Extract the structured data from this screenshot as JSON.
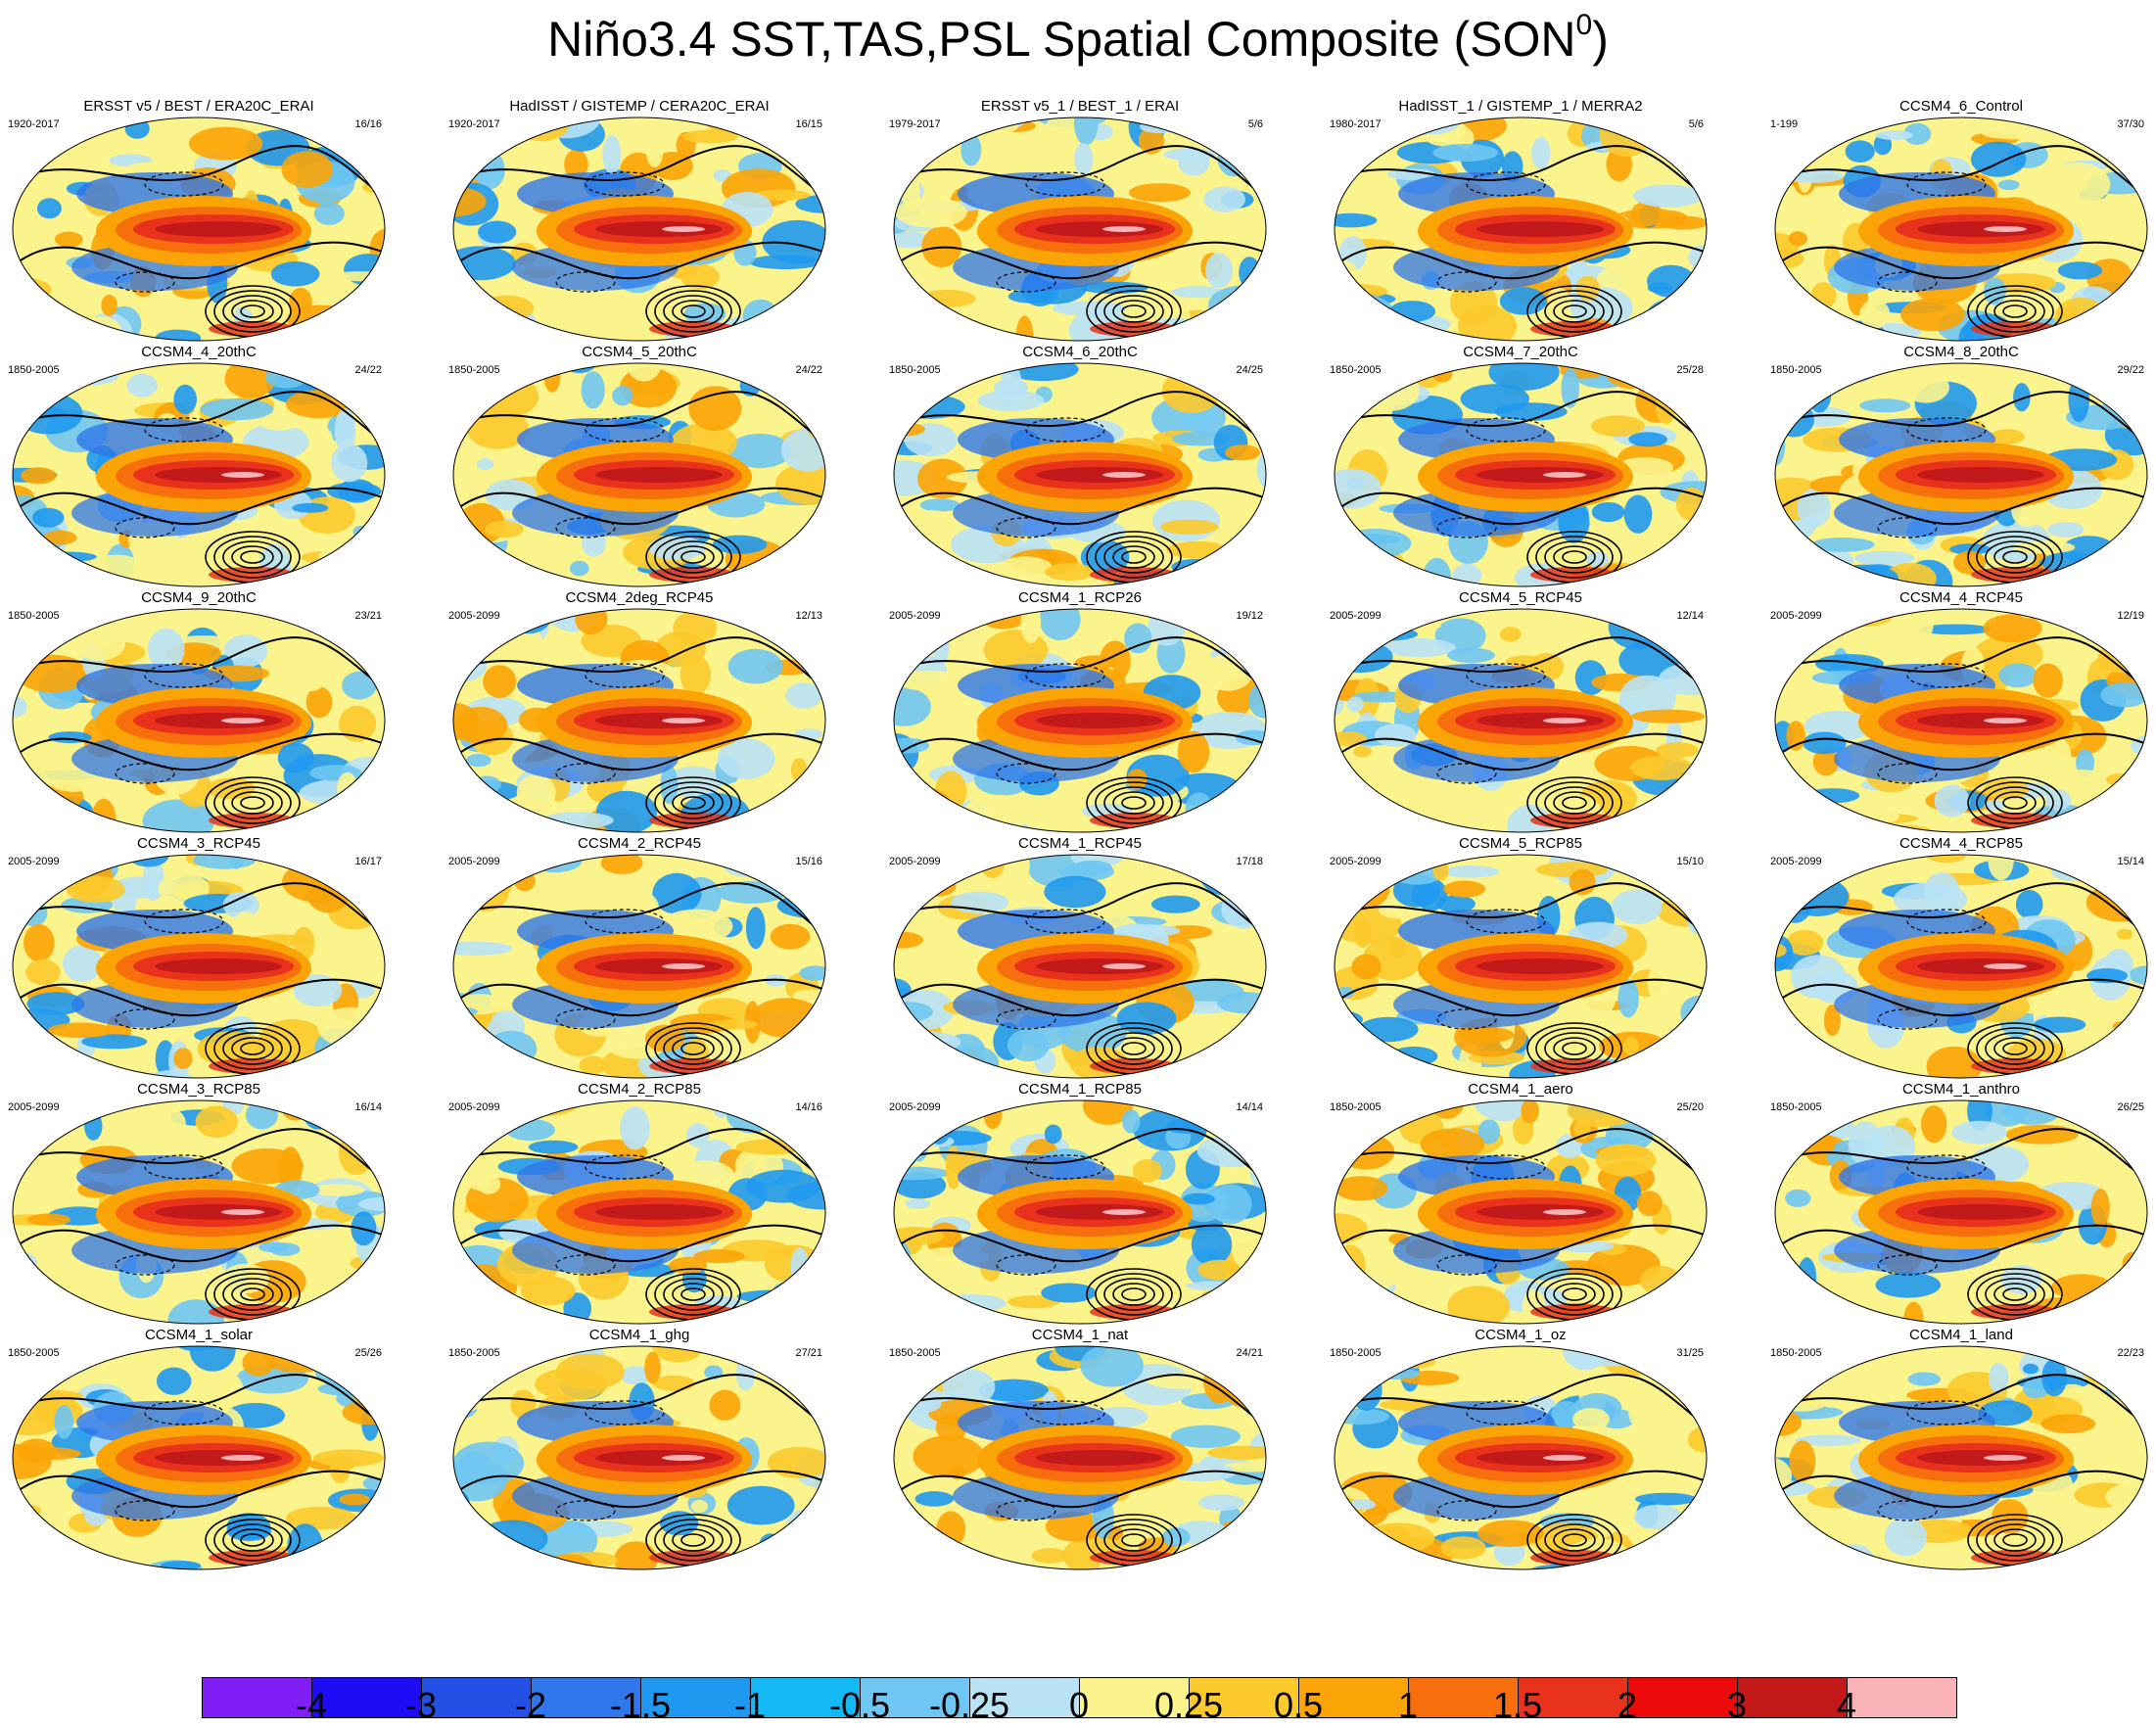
{
  "title": {
    "main": "Niño3.4 SST,TAS,PSL Spatial Composite (SON",
    "superscript": "0",
    "close": ")"
  },
  "panels": [
    {
      "name": "ERSST v5 / BEST / ERA20C_ERAI",
      "period": "1920-2017",
      "count": "16/16"
    },
    {
      "name": "HadISST / GISTEMP / CERA20C_ERAI",
      "period": "1920-2017",
      "count": "16/15"
    },
    {
      "name": "ERSST v5_1 / BEST_1 / ERAI",
      "period": "1979-2017",
      "count": "5/6"
    },
    {
      "name": "HadISST_1 / GISTEMP_1 / MERRA2",
      "period": "1980-2017",
      "count": "5/6"
    },
    {
      "name": "CCSM4_6_Control",
      "period": "1-199",
      "count": "37/30"
    },
    {
      "name": "CCSM4_4_20thC",
      "period": "1850-2005",
      "count": "24/22"
    },
    {
      "name": "CCSM4_5_20thC",
      "period": "1850-2005",
      "count": "24/22"
    },
    {
      "name": "CCSM4_6_20thC",
      "period": "1850-2005",
      "count": "24/25"
    },
    {
      "name": "CCSM4_7_20thC",
      "period": "1850-2005",
      "count": "25/28"
    },
    {
      "name": "CCSM4_8_20thC",
      "period": "1850-2005",
      "count": "29/22"
    },
    {
      "name": "CCSM4_9_20thC",
      "period": "1850-2005",
      "count": "23/21"
    },
    {
      "name": "CCSM4_2deg_RCP45",
      "period": "2005-2099",
      "count": "12/13"
    },
    {
      "name": "CCSM4_1_RCP26",
      "period": "2005-2099",
      "count": "19/12"
    },
    {
      "name": "CCSM4_5_RCP45",
      "period": "2005-2099",
      "count": "12/14"
    },
    {
      "name": "CCSM4_4_RCP45",
      "period": "2005-2099",
      "count": "12/19"
    },
    {
      "name": "CCSM4_3_RCP45",
      "period": "2005-2099",
      "count": "16/17"
    },
    {
      "name": "CCSM4_2_RCP45",
      "period": "2005-2099",
      "count": "15/16"
    },
    {
      "name": "CCSM4_1_RCP45",
      "period": "2005-2099",
      "count": "17/18"
    },
    {
      "name": "CCSM4_5_RCP85",
      "period": "2005-2099",
      "count": "15/10"
    },
    {
      "name": "CCSM4_4_RCP85",
      "period": "2005-2099",
      "count": "15/14"
    },
    {
      "name": "CCSM4_3_RCP85",
      "period": "2005-2099",
      "count": "16/14"
    },
    {
      "name": "CCSM4_2_RCP85",
      "period": "2005-2099",
      "count": "14/16"
    },
    {
      "name": "CCSM4_1_RCP85",
      "period": "2005-2099",
      "count": "14/14"
    },
    {
      "name": "CCSM4_1_aero",
      "period": "1850-2005",
      "count": "25/20"
    },
    {
      "name": "CCSM4_1_anthro",
      "period": "1850-2005",
      "count": "26/25"
    },
    {
      "name": "CCSM4_1_solar",
      "period": "1850-2005",
      "count": "25/26"
    },
    {
      "name": "CCSM4_1_ghg",
      "period": "1850-2005",
      "count": "27/21"
    },
    {
      "name": "CCSM4_1_nat",
      "period": "1850-2005",
      "count": "24/21"
    },
    {
      "name": "CCSM4_1_oz",
      "period": "1850-2005",
      "count": "31/25"
    },
    {
      "name": "CCSM4_1_land",
      "period": "1850-2005",
      "count": "22/23"
    }
  ],
  "colorbar": {
    "labels": [
      "-4",
      "-3",
      "-2",
      "-1.5",
      "-1",
      "-0.5",
      "-0.25",
      "0",
      "0.25",
      "0.5",
      "1",
      "1.5",
      "2",
      "3",
      "4"
    ],
    "colors": [
      "#7f1ef5",
      "#1f0cf7",
      "#2550e6",
      "#2f77ea",
      "#1f99f0",
      "#14b9f4",
      "#6fc6f2",
      "#b9e2f5",
      "#fbf48c",
      "#fcca2c",
      "#fba406",
      "#f76f0c",
      "#e8321b",
      "#ec0a0a",
      "#c21a1a",
      "#f9b3b6"
    ]
  }
}
